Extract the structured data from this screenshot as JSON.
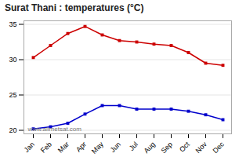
{
  "chart_data": {
    "type": "line",
    "title": "Surat Thani : temperatures (°C)",
    "categories": [
      "Jan",
      "Feb",
      "Mar",
      "Apr",
      "May",
      "Jun",
      "Jul",
      "Aug",
      "Sep",
      "Oct",
      "Nov",
      "Dec"
    ],
    "series": [
      {
        "color": "#cc0000",
        "marker": "square",
        "values": [
          30.3,
          32.0,
          33.7,
          34.7,
          33.5,
          32.7,
          32.5,
          32.2,
          32.0,
          31.0,
          29.5,
          29.2
        ]
      },
      {
        "color": "#0000cc",
        "marker": "square",
        "values": [
          20.2,
          20.5,
          21.0,
          22.3,
          23.5,
          23.5,
          23.0,
          23.0,
          23.0,
          22.7,
          22.2,
          21.5
        ]
      }
    ],
    "ylim": [
      19.5,
      35.5
    ],
    "yticks": [
      20,
      25,
      30,
      35
    ],
    "grid": true,
    "annotations": [
      "www.allmetsat.com"
    ]
  }
}
